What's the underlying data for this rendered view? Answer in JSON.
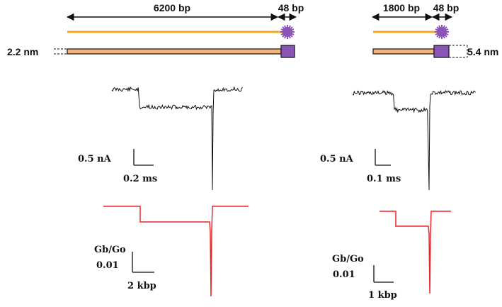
{
  "left_panel": {
    "length_label": "6200 bp",
    "tag_label": "48 bp",
    "diameter_label": "2.2 nm",
    "scale_current": "0.5 nA",
    "scale_time": "0.2 ms",
    "model_y_label": "Gb/Go",
    "model_y_value": "0.01",
    "model_x_scale": "2 kbp"
  },
  "right_panel": {
    "length_label": "1800 bp",
    "tag_label": "48 bp",
    "diameter_label": "5.4 nm",
    "scale_current": "0.5 nA",
    "scale_time": "0.1 ms",
    "model_y_label": "Gb/Go",
    "model_y_value": "0.01",
    "model_x_scale": "1 kbp"
  },
  "colors": {
    "dna_line": "#f5a623",
    "tag": "#8b55b8",
    "trace": "#111111",
    "model": "#e8262a",
    "tube_fill": "#f3b380"
  }
}
